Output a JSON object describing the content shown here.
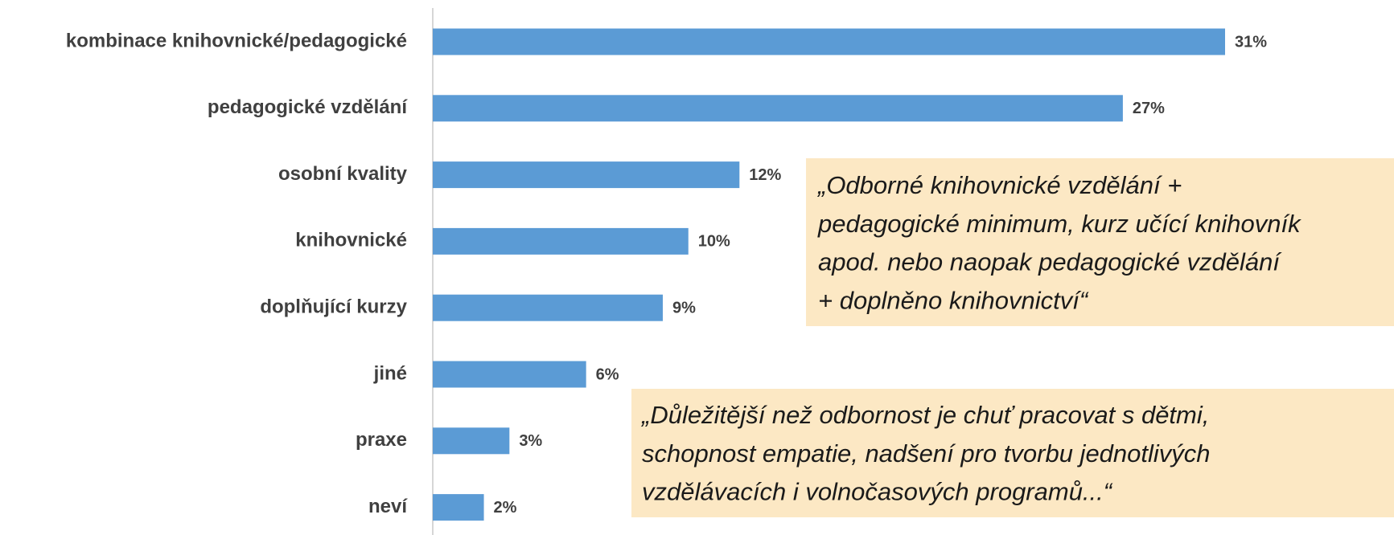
{
  "chart_data": {
    "type": "bar",
    "orientation": "horizontal",
    "categories": [
      "kombinace knihovnické/pedagogické",
      "pedagogické vzdělání",
      "osobní kvality",
      "knihovnické",
      "doplňující kurzy",
      "jiné",
      "praxe",
      "neví"
    ],
    "values": [
      31,
      27,
      12,
      10,
      9,
      6,
      3,
      2
    ],
    "value_labels": [
      "31%",
      "27%",
      "12%",
      "10%",
      "9%",
      "6%",
      "3%",
      "2%"
    ],
    "color": "#5b9bd5",
    "annotations": [
      {
        "lines": [
          "„Odborné knihovnické vzdělání +",
          "pedagogické minimum, kurz učící knihovník",
          "apod. nebo naopak pedagogické vzdělání",
          "+ doplněno knihovnictví“"
        ]
      },
      {
        "lines": [
          "„Důležitější než odbornost je chuť pracovat s dětmi,",
          "schopnost empatie, nadšení pro tvorbu jednotlivých",
          "vzdělávacích i volnočasových programů...“"
        ]
      }
    ]
  }
}
